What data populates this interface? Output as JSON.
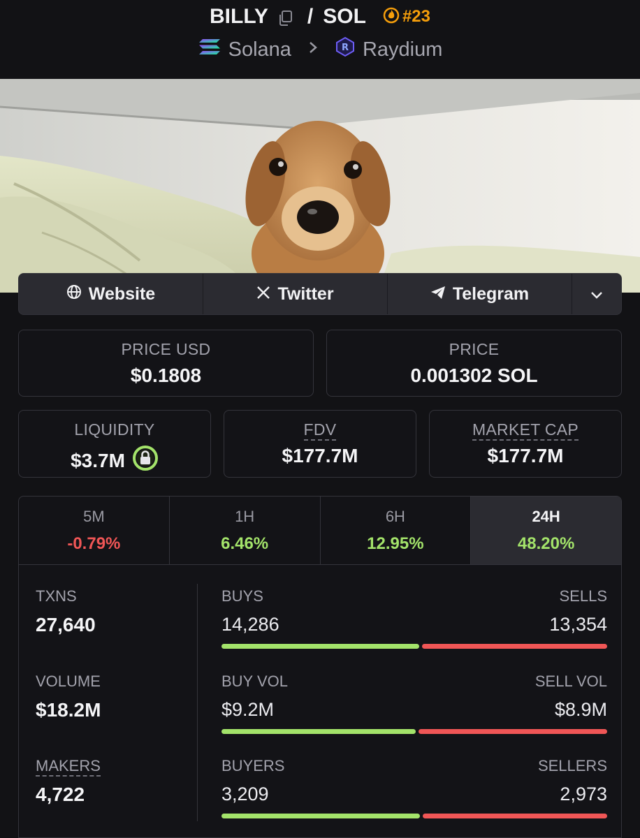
{
  "header": {
    "token": "BILLY",
    "quote": "SOL",
    "separator": "/",
    "rank": "#23",
    "chain": "Solana",
    "dex": "Raydium"
  },
  "links": {
    "website": "Website",
    "twitter": "Twitter",
    "telegram": "Telegram"
  },
  "prices": {
    "price_usd_label": "PRICE USD",
    "price_usd": "$0.1808",
    "price_label": "PRICE",
    "price": "0.001302 SOL"
  },
  "metrics": {
    "liquidity_label": "LIQUIDITY",
    "liquidity": "$3.7M",
    "fdv_label": "FDV",
    "fdv": "$177.7M",
    "mcap_label": "MARKET CAP",
    "mcap": "$177.7M"
  },
  "tabs": [
    {
      "label": "5M",
      "value": "-0.79%"
    },
    {
      "label": "1H",
      "value": "6.46%"
    },
    {
      "label": "6H",
      "value": "12.95%"
    },
    {
      "label": "24H",
      "value": "48.20%"
    }
  ],
  "summary": {
    "txns_label": "TXNS",
    "txns": "27,640",
    "volume_label": "VOLUME",
    "volume": "$18.2M",
    "makers_label": "MAKERS",
    "makers": "4,722"
  },
  "rows": {
    "buys_label": "BUYS",
    "sells_label": "SELLS",
    "buys": "14,286",
    "sells": "13,354",
    "buy_vol_label": "BUY VOL",
    "sell_vol_label": "SELL VOL",
    "buy_vol": "$9.2M",
    "sell_vol": "$8.9M",
    "buyers_label": "BUYERS",
    "sellers_label": "SELLERS",
    "buyers": "3,209",
    "sellers": "2,973"
  },
  "ratios": {
    "buys_fraction": 0.517,
    "buy_vol_fraction": 0.508,
    "buyers_fraction": 0.519
  },
  "colors": {
    "positive": "#a3e36a",
    "negative": "#f05656",
    "rank": "#f59e0b"
  }
}
